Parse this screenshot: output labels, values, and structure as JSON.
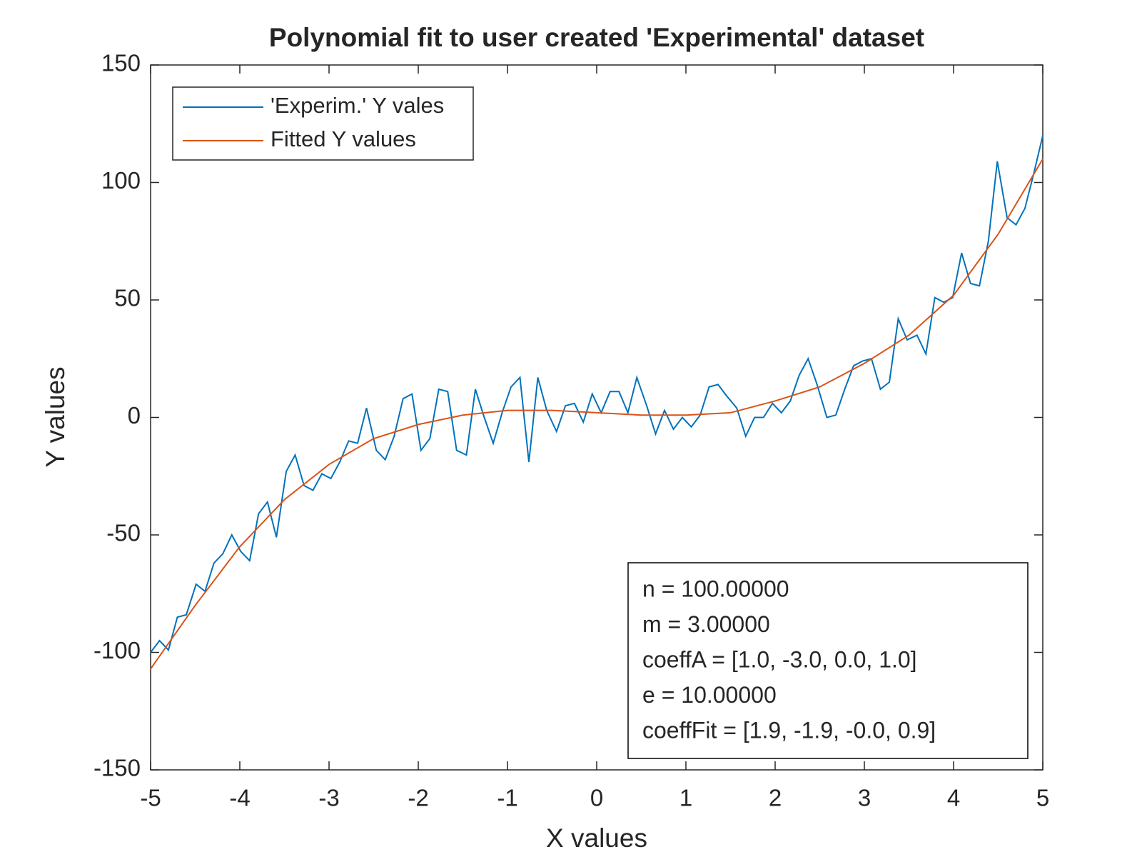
{
  "chart_data": {
    "type": "line",
    "title": "Polynomial fit to user created 'Experimental' dataset",
    "x_label": "X values",
    "y_label": "Y values",
    "xlim": [
      -5,
      5
    ],
    "xticks": [
      -5,
      -4,
      -3,
      -2,
      -1,
      0,
      1,
      2,
      3,
      4,
      5
    ],
    "ylim": [
      -150,
      150
    ],
    "yticks": [
      -150,
      -100,
      -50,
      0,
      50,
      100,
      150
    ],
    "grid": false,
    "legend_position": "upper left",
    "series": [
      {
        "name": "'Experim.' Y vales",
        "color": "#0072bd",
        "x": [
          -5.0,
          -4.9,
          -4.8,
          -4.7,
          -4.6,
          -4.49,
          -4.39,
          -4.29,
          -4.19,
          -4.09,
          -3.99,
          -3.89,
          -3.79,
          -3.69,
          -3.59,
          -3.48,
          -3.38,
          -3.28,
          -3.18,
          -3.08,
          -2.98,
          -2.88,
          -2.78,
          -2.68,
          -2.58,
          -2.47,
          -2.37,
          -2.27,
          -2.17,
          -2.07,
          -1.97,
          -1.87,
          -1.77,
          -1.67,
          -1.57,
          -1.46,
          -1.36,
          -1.26,
          -1.16,
          -1.06,
          -0.96,
          -0.86,
          -0.76,
          -0.66,
          -0.56,
          -0.45,
          -0.35,
          -0.25,
          -0.15,
          -0.05,
          0.05,
          0.15,
          0.25,
          0.35,
          0.45,
          0.56,
          0.66,
          0.76,
          0.86,
          0.96,
          1.06,
          1.16,
          1.26,
          1.36,
          1.46,
          1.57,
          1.67,
          1.77,
          1.87,
          1.97,
          2.07,
          2.17,
          2.27,
          2.37,
          2.47,
          2.58,
          2.68,
          2.78,
          2.88,
          2.98,
          3.08,
          3.18,
          3.28,
          3.38,
          3.48,
          3.59,
          3.69,
          3.79,
          3.89,
          3.99,
          4.09,
          4.19,
          4.29,
          4.39,
          4.49,
          4.6,
          4.7,
          4.8,
          4.9,
          5.0
        ],
        "values": [
          -100,
          -95,
          -99,
          -85,
          -84,
          -71,
          -74,
          -62,
          -58,
          -50,
          -57,
          -61,
          -41,
          -36,
          -51,
          -23,
          -16,
          -29,
          -31,
          -24,
          -26,
          -19,
          -10,
          -11,
          4,
          -14,
          -18,
          -8,
          8,
          10,
          -14,
          -9,
          12,
          11,
          -14,
          -16,
          12,
          0,
          -11,
          2,
          13,
          17,
          -19,
          17,
          3,
          -6,
          5,
          6,
          -2,
          10,
          2,
          11,
          11,
          2,
          17,
          5,
          -7,
          3,
          -5,
          0,
          -4,
          1,
          13,
          14,
          9,
          4,
          -8,
          0,
          0,
          6,
          2,
          7,
          18,
          25,
          14,
          0,
          1,
          12,
          22,
          24,
          25,
          12,
          15,
          42,
          33,
          35,
          27,
          51,
          49,
          51,
          70,
          57,
          56,
          75,
          109,
          85,
          82,
          89,
          104,
          120
        ]
      },
      {
        "name": "Fitted Y values",
        "color": "#d95319",
        "x": [
          -5,
          -4.5,
          -4,
          -3.5,
          -3,
          -2.5,
          -2,
          -1.5,
          -1,
          -0.5,
          0,
          0.5,
          1,
          1.5,
          2,
          2.5,
          3,
          3.5,
          4,
          4.5,
          5
        ],
        "values": [
          -107,
          -80,
          -55,
          -35,
          -20,
          -9,
          -3,
          1,
          3,
          3,
          2,
          1,
          1,
          2,
          7,
          13,
          23,
          35,
          52,
          78,
          110
        ]
      }
    ],
    "annotations": [
      "n = 100.00000",
      "m = 3.00000",
      "coeffA = [1.0, -3.0, 0.0, 1.0]",
      "e = 10.00000",
      "coeffFit = [1.9, -1.9, -0.0, 0.9]"
    ]
  }
}
